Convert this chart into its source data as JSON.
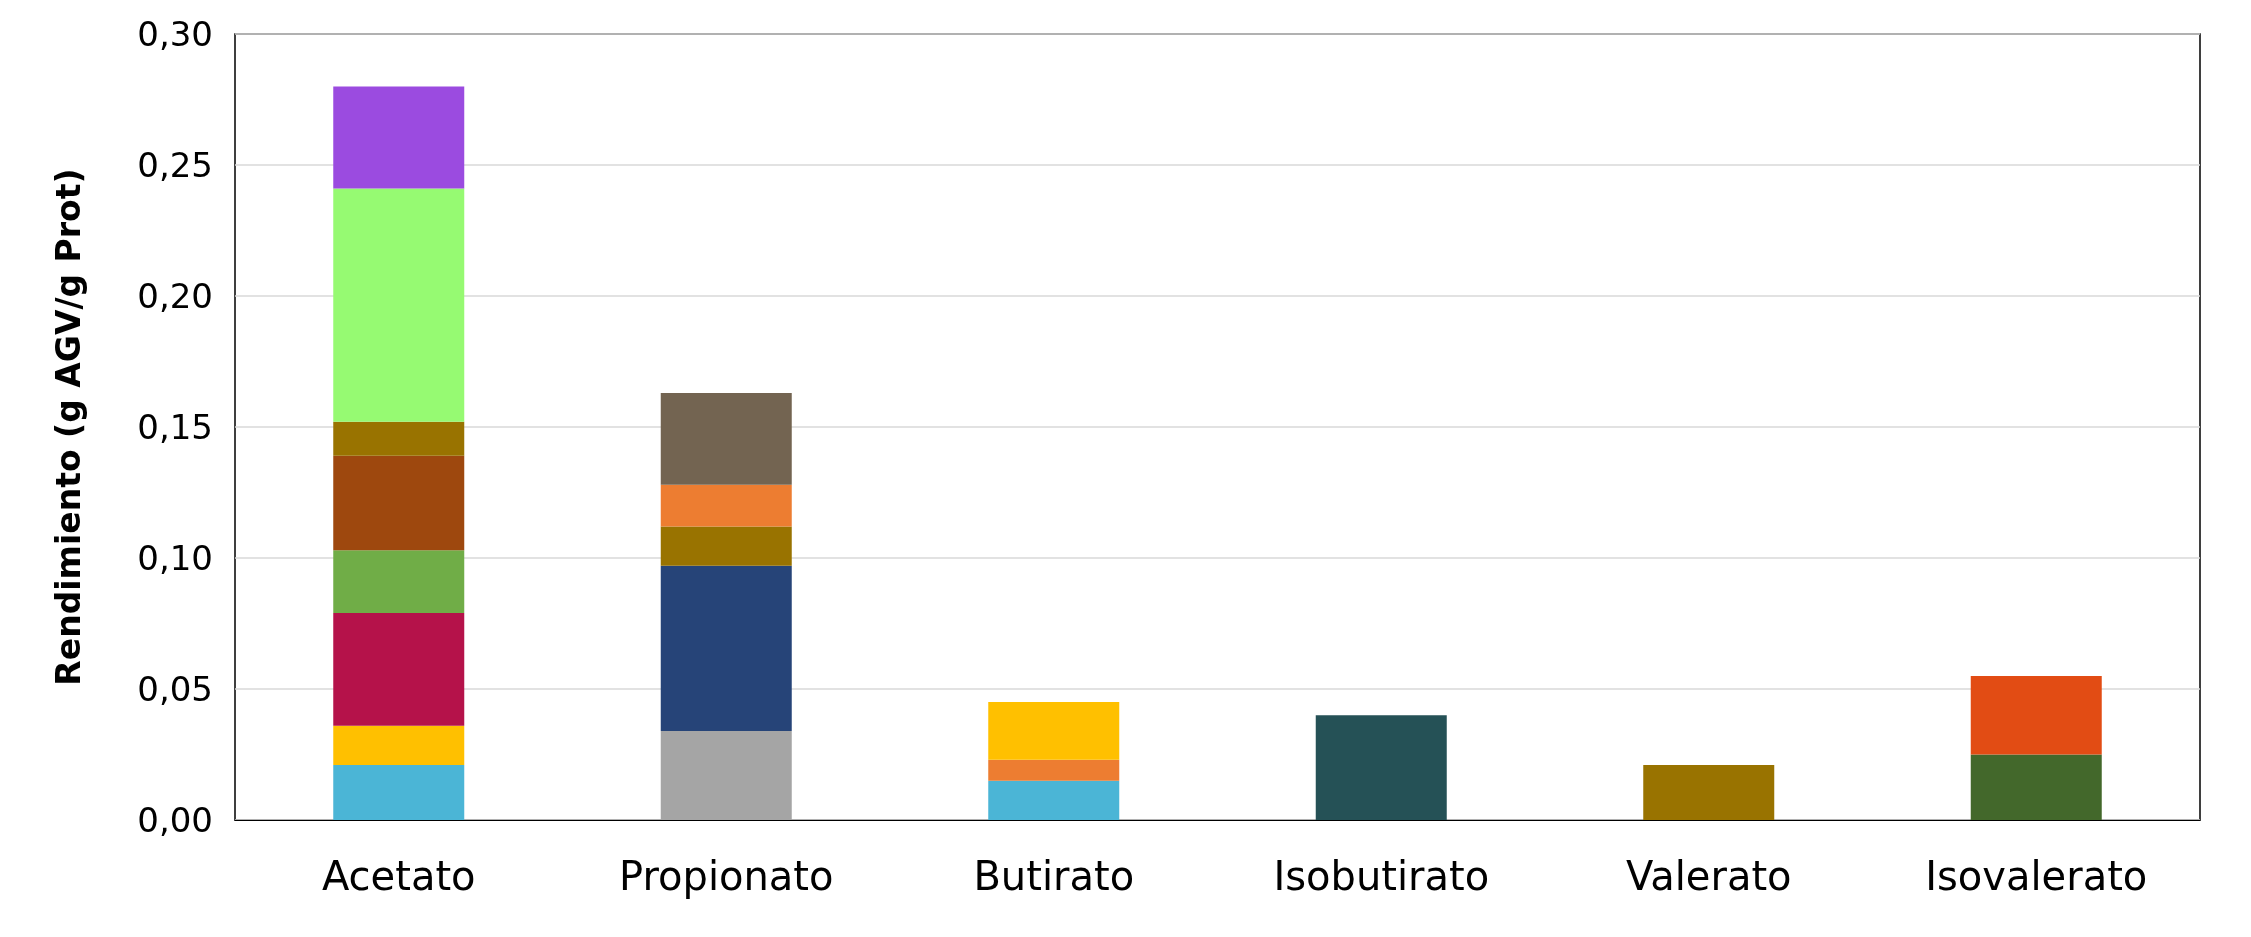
{
  "chart_data": {
    "type": "bar",
    "ylabel": "Rendimiento (g AGV/g Prot)",
    "stacked": true,
    "grid": "y",
    "categories": [
      "Acetato",
      "Propionato",
      "Butirato",
      "Isobutirato",
      "Valerato",
      "Isovalerato"
    ],
    "ylim": [
      0,
      0.3
    ],
    "yticks": [
      {
        "value": 0,
        "label": "0,00"
      },
      {
        "value": 0.05,
        "label": "0,05"
      },
      {
        "value": 0.1,
        "label": "0,10"
      },
      {
        "value": 0.15,
        "label": "0,15"
      },
      {
        "value": 0.2,
        "label": "0,20"
      },
      {
        "value": 0.25,
        "label": "0,25"
      },
      {
        "value": 0.3,
        "label": "0,30"
      }
    ],
    "series": [
      {
        "values": [
          0.021,
          0.034,
          0.015,
          0.04,
          0.021,
          0.025
        ],
        "colors": [
          "#4bb5d6",
          "#a5a5a5",
          "#4bb5d6",
          "#255156",
          "#997300",
          "#43682b"
        ]
      },
      {
        "values": [
          0.015,
          0.063,
          0.008,
          null,
          null,
          0.03
        ],
        "colors": [
          "#ffc000",
          "#264478",
          "#ed7d31",
          null,
          null,
          "#e24c14"
        ]
      },
      {
        "values": [
          0.043,
          0.015,
          0.022,
          null,
          null,
          null
        ],
        "colors": [
          "#b5124a",
          "#997300",
          "#ffc000",
          null,
          null,
          null
        ]
      },
      {
        "values": [
          0.024,
          0.016,
          null,
          null,
          null,
          null
        ],
        "colors": [
          "#70ad47",
          "#ed7d31",
          null,
          null,
          null,
          null
        ]
      },
      {
        "values": [
          0.036,
          0.035,
          null,
          null,
          null,
          null
        ],
        "colors": [
          "#9e480e",
          "#736451",
          null,
          null,
          null,
          null
        ]
      },
      {
        "values": [
          0.013,
          null,
          null,
          null,
          null,
          null
        ],
        "colors": [
          "#997300",
          null,
          null,
          null,
          null,
          null
        ]
      },
      {
        "values": [
          0.089,
          null,
          null,
          null,
          null,
          null
        ],
        "colors": [
          "#96fa72",
          null,
          null,
          null,
          null,
          null
        ]
      },
      {
        "values": [
          0.039,
          null,
          null,
          null,
          null,
          null
        ],
        "colors": [
          "#9b4be0",
          null,
          null,
          null,
          null,
          null
        ]
      }
    ]
  }
}
